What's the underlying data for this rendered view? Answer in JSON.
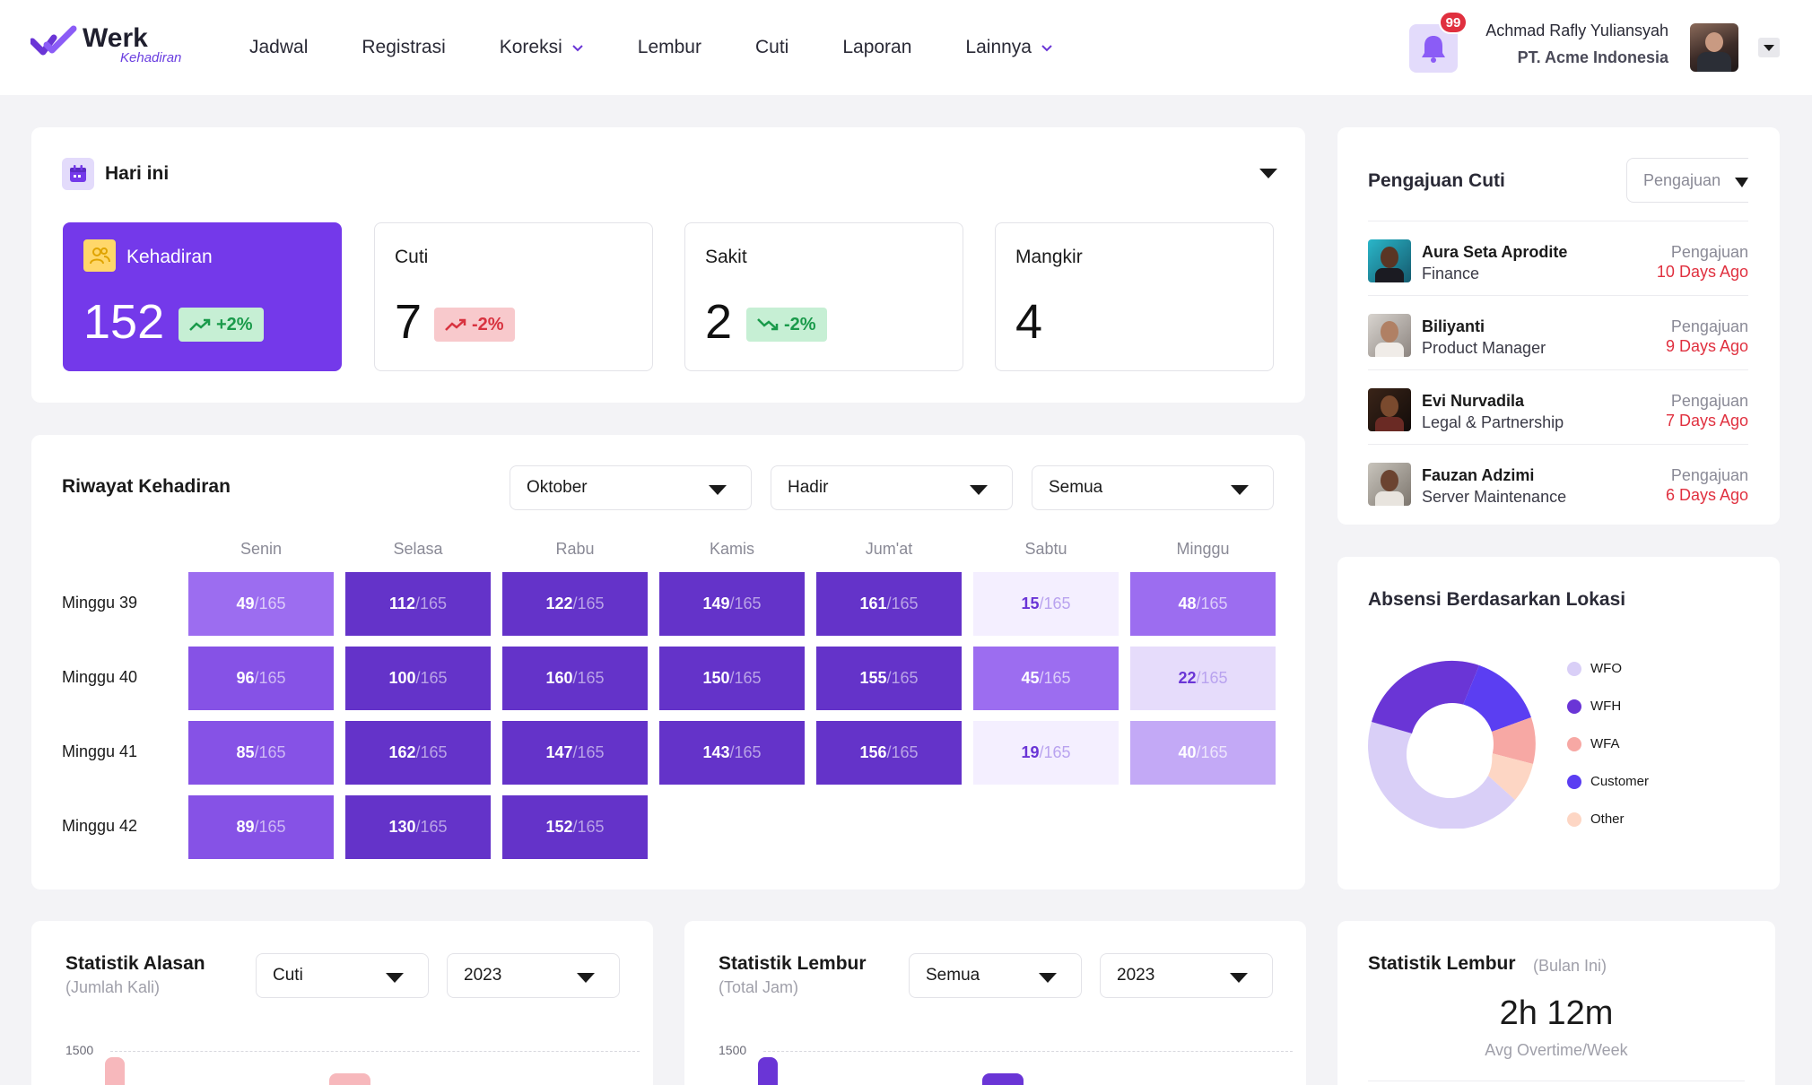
{
  "brand": {
    "name": "Werk",
    "sub": "Kehadiran",
    "accent": "#7439ea"
  },
  "nav": {
    "items": [
      {
        "label": "Jadwal",
        "dropdown": false
      },
      {
        "label": "Registrasi",
        "dropdown": false
      },
      {
        "label": "Koreksi",
        "dropdown": true
      },
      {
        "label": "Lembur",
        "dropdown": false
      },
      {
        "label": "Cuti",
        "dropdown": false
      },
      {
        "label": "Laporan",
        "dropdown": false
      },
      {
        "label": "Lainnya",
        "dropdown": true
      }
    ]
  },
  "user": {
    "notifications": "99",
    "name": "Achmad Rafly Yuliansyah",
    "company": "PT. Acme Indonesia"
  },
  "today": {
    "title": "Hari ini",
    "stats": [
      {
        "label": "Kehadiran",
        "value": "152",
        "change": "+2%",
        "trend": "up"
      },
      {
        "label": "Cuti",
        "value": "7",
        "change": "-2%",
        "trend": "up-red"
      },
      {
        "label": "Sakit",
        "value": "2",
        "change": "-2%",
        "trend": "down-green"
      },
      {
        "label": "Mangkir",
        "value": "4",
        "change": "",
        "trend": "none"
      }
    ]
  },
  "history": {
    "title": "Riwayat Kehadiran",
    "filters": {
      "month": "Oktober",
      "status": "Hadir",
      "scope": "Semua"
    },
    "days": [
      "Senin",
      "Selasa",
      "Rabu",
      "Kamis",
      "Jum'at",
      "Sabtu",
      "Minggu"
    ],
    "total": "/165",
    "weeks": [
      {
        "label": "Minggu 39",
        "values": [
          "49",
          "112",
          "122",
          "149",
          "161",
          "15",
          "48"
        ]
      },
      {
        "label": "Minggu 40",
        "values": [
          "96",
          "100",
          "160",
          "150",
          "155",
          "45",
          "22"
        ]
      },
      {
        "label": "Minggu 41",
        "values": [
          "85",
          "162",
          "147",
          "143",
          "156",
          "19",
          "40"
        ]
      },
      {
        "label": "Minggu 42",
        "values": [
          "89",
          "130",
          "152"
        ]
      }
    ]
  },
  "leave_requests": {
    "title": "Pengajuan Cuti",
    "filter": "Pengajuan",
    "items": [
      {
        "name": "Aura Seta Aprodite",
        "role": "Finance",
        "status": "Pengajuan",
        "time": "10 Days Ago"
      },
      {
        "name": "Biliyanti",
        "role": "Product Manager",
        "status": "Pengajuan",
        "time": "9 Days Ago"
      },
      {
        "name": "Evi Nurvadila",
        "role": "Legal & Partnership",
        "status": "Pengajuan",
        "time": "7 Days Ago"
      },
      {
        "name": "Fauzan Adzimi",
        "role": "Server Maintenance",
        "status": "Pengajuan",
        "time": "6 Days Ago"
      }
    ]
  },
  "location": {
    "title": "Absensi Berdasarkan Lokasi",
    "legend": [
      {
        "label": "WFO",
        "color": "#d9cff7"
      },
      {
        "label": "WFH",
        "color": "#6a35d6"
      },
      {
        "label": "WFA",
        "color": "#f7a8a4"
      },
      {
        "label": "Customer",
        "color": "#5b3ef2"
      },
      {
        "label": "Other",
        "color": "#fdd6c4"
      }
    ]
  },
  "reason_stats": {
    "title": "Statistik Alasan",
    "sub": "(Jumlah Kali)",
    "filter_type": "Cuti",
    "filter_year": "2023",
    "tick": "1500"
  },
  "overtime_stats": {
    "title": "Statistik Lembur",
    "sub": "(Total Jam)",
    "filter_type": "Semua",
    "filter_year": "2023",
    "tick": "1500"
  },
  "overtime_month": {
    "title": "Statistik Lembur",
    "period": "(Bulan Ini)",
    "value": "2h 12m",
    "label": "Avg Overtime/Week"
  }
}
